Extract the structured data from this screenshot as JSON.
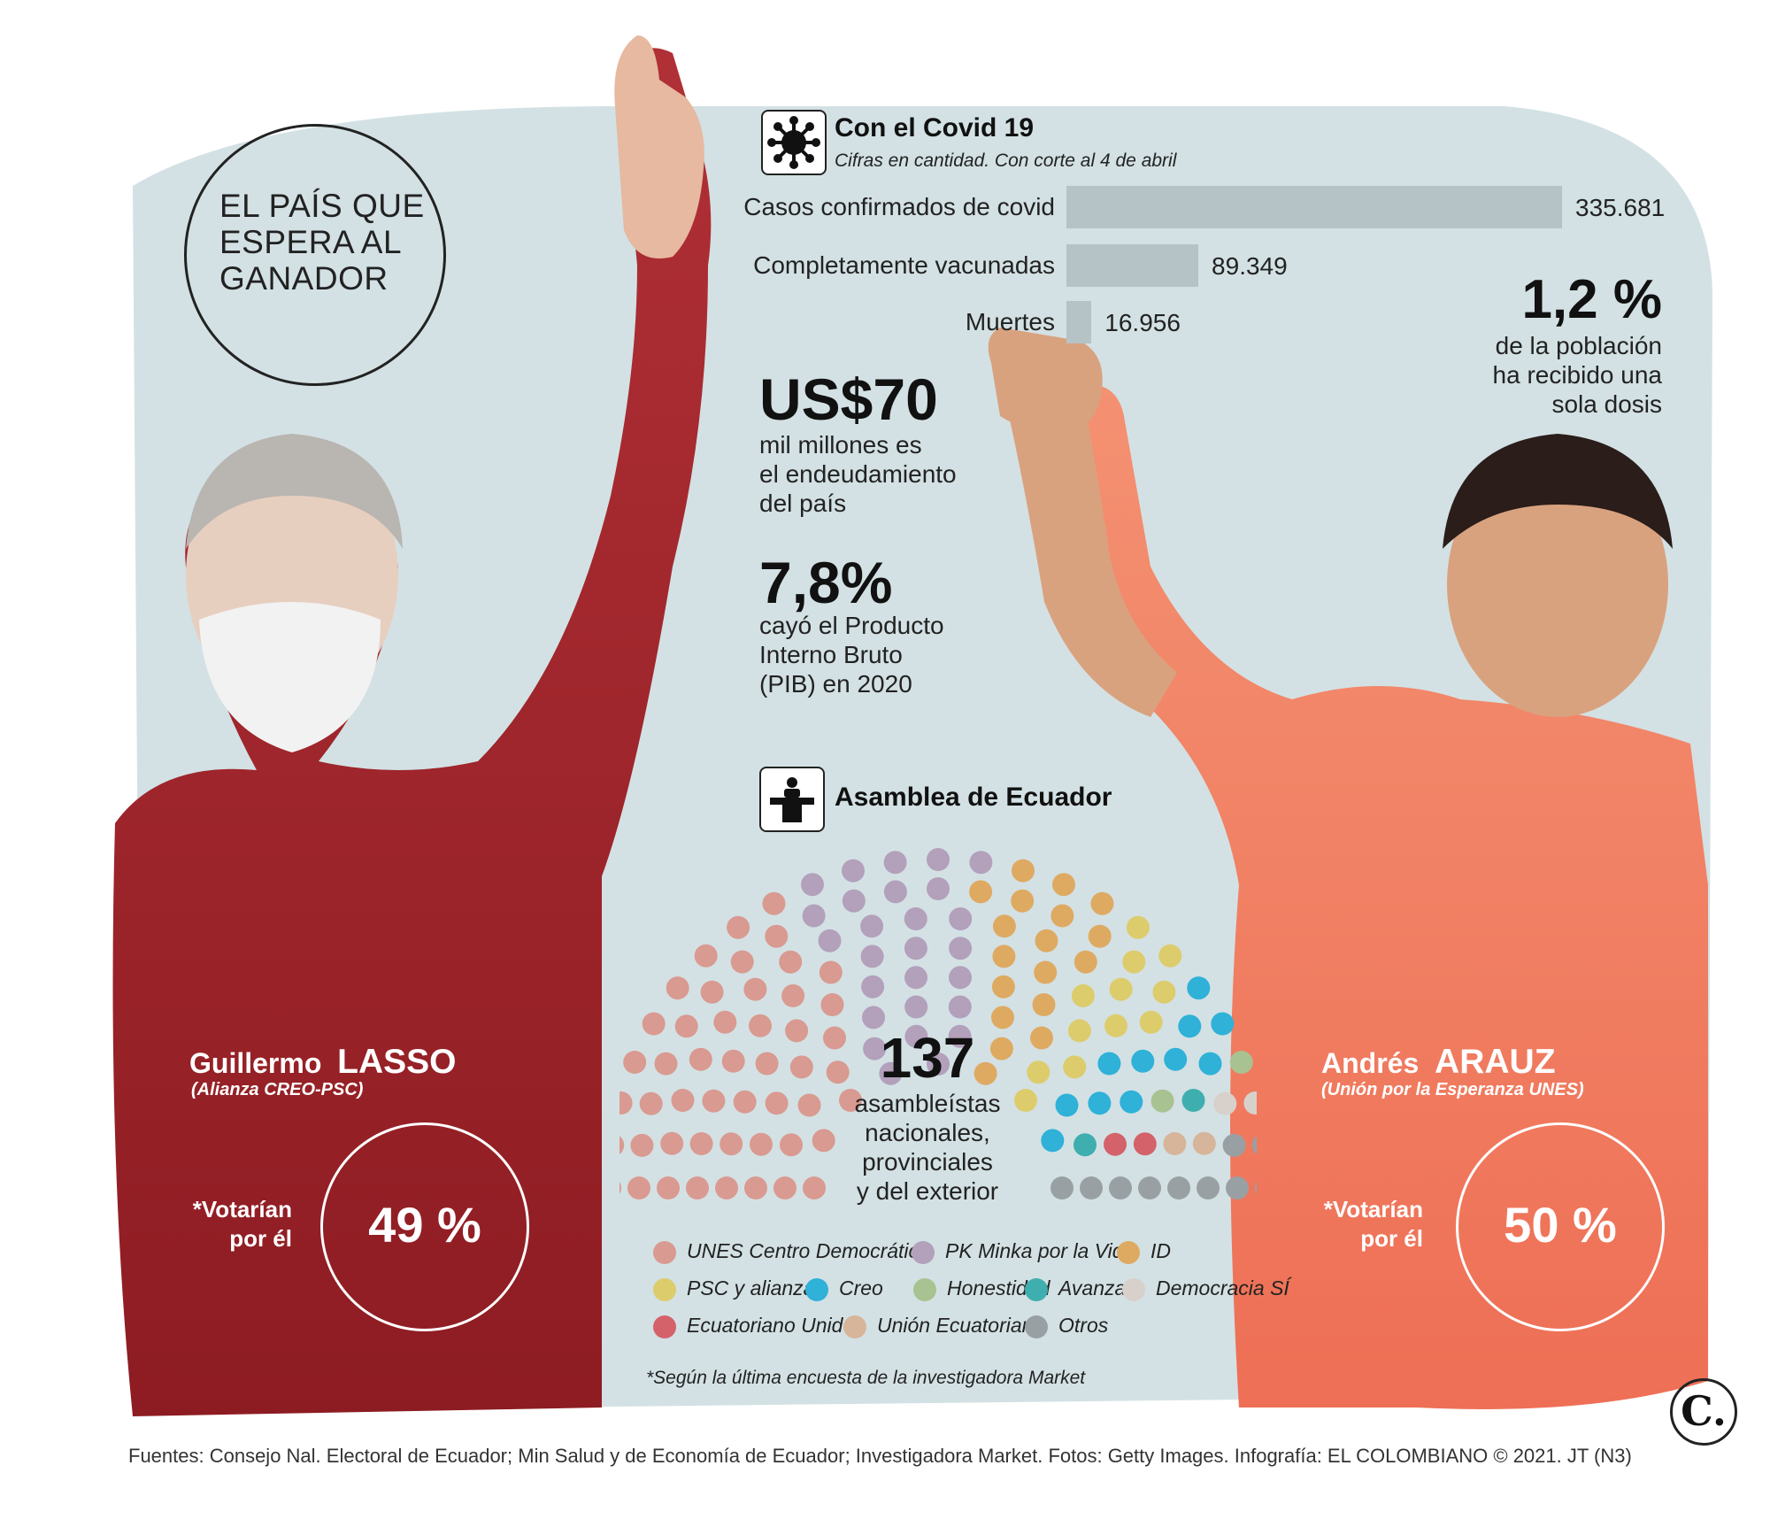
{
  "title": "EL PAÍS QUE ESPERA AL GANADOR",
  "title_lines": [
    "EL PAÍS QUE",
    "ESPERA AL",
    "GANADOR"
  ],
  "colors": {
    "background": "#d3e1e4",
    "lasso_red": "#9c2226",
    "arauz_orange": "#f07c5e",
    "bar_gray": "#b6c3c6"
  },
  "covid": {
    "title": "Con el Covid 19",
    "subtitle": "Cifras en cantidad. Con corte al 4 de abril",
    "icon": "virus-icon",
    "stat_value": "1,2 %",
    "stat_lines": [
      "de la población",
      "ha recibido una",
      "sola dosis"
    ]
  },
  "debt": {
    "value": "US$70",
    "lines": [
      "mil millones es",
      "el endeudamiento",
      "del país"
    ]
  },
  "gdp": {
    "value": "7,8%",
    "lines": [
      "cayó el Producto",
      "Interno Bruto",
      "(PIB) en 2020"
    ]
  },
  "assembly": {
    "title": "Asamblea de Ecuador",
    "icon": "podium-icon",
    "total": "137",
    "total_lines": [
      "asambleístas",
      "nacionales,",
      "provinciales",
      "y del exterior"
    ]
  },
  "candidates": {
    "lasso": {
      "first": "Guillermo",
      "last": "LASSO",
      "party": "(Alianza CREO-PSC)",
      "vote_label_lines": [
        "*Votarían",
        "por él"
      ],
      "vote_pct": "49 %",
      "vote_share": 0.49
    },
    "arauz": {
      "first": "Andrés",
      "last": "ARAUZ",
      "party": "(Unión por la Esperanza UNES)",
      "vote_label_lines": [
        "*Votarían",
        "por él"
      ],
      "vote_pct": "50 %",
      "vote_share": 0.5
    }
  },
  "note": "*Según la última encuesta de la investigadora Market",
  "footer": "Fuentes: Consejo Nal. Electoral de Ecuador; Min Salud y de Economía de Ecuador; Investigadora Market. Fotos: Getty Images. Infografía: EL COLOMBIANO © 2021. JT (N3)",
  "logo": "C.",
  "chart_data": [
    {
      "type": "bar",
      "orientation": "horizontal",
      "title": "Con el Covid 19",
      "subtitle": "Cifras en cantidad. Con corte al 4 de abril",
      "categories": [
        "Casos confirmados de covid",
        "Completamente vacunadas",
        "Muertes"
      ],
      "values": [
        335681,
        89349,
        16956
      ],
      "value_labels": [
        "335.681",
        "89.349",
        "16.956"
      ],
      "xlim": [
        0,
        335681
      ],
      "grid": false
    },
    {
      "type": "parliament",
      "title": "Asamblea de Ecuador",
      "total_seats": 137,
      "series": [
        {
          "name": "UNES Centro Democrático",
          "value": 49,
          "color": "#d99a91"
        },
        {
          "name": "PK Minka por la Vida",
          "value": 27,
          "color": "#b3a0bb"
        },
        {
          "name": "ID",
          "value": 18,
          "color": "#deaa62"
        },
        {
          "name": "PSC y alianzas",
          "value": 12,
          "color": "#dccc6c"
        },
        {
          "name": "Creo",
          "value": 11,
          "color": "#2fb1d8"
        },
        {
          "name": "Honestidad",
          "value": 2,
          "color": "#a8c291"
        },
        {
          "name": "Avanza",
          "value": 2,
          "color": "#3faeae"
        },
        {
          "name": "Democracia SÍ",
          "value": 2,
          "color": "#d8d0cb"
        },
        {
          "name": "Ecuatoriano Unido",
          "value": 2,
          "color": "#d4626b"
        },
        {
          "name": "Unión Ecuatoriana",
          "value": 2,
          "color": "#d6b59a"
        },
        {
          "name": "Otros",
          "value": 10,
          "color": "#99a0a4"
        }
      ],
      "legend_position": "bottom"
    }
  ]
}
